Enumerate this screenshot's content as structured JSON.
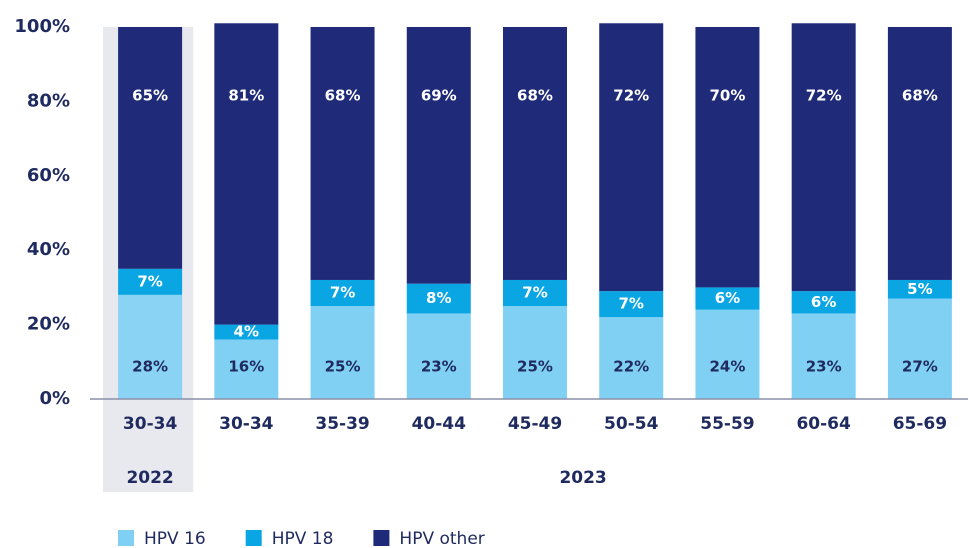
{
  "chart_data": {
    "type": "stacked_bar",
    "groups": [
      {
        "label": "2022",
        "categories": [
          "30-34"
        ]
      },
      {
        "label": "2023",
        "categories": [
          "30-34",
          "35-39",
          "40-44",
          "45-49",
          "50-54",
          "55-59",
          "60-64",
          "65-69"
        ]
      }
    ],
    "series": [
      {
        "name": "HPV 16",
        "color": "#80d0f4",
        "values": [
          28,
          16,
          25,
          23,
          25,
          22,
          24,
          23,
          27
        ],
        "value_labels": [
          "28%",
          "16%",
          "25%",
          "23%",
          "25%",
          "22%",
          "24%",
          "23%",
          "27%"
        ]
      },
      {
        "name": "HPV 18",
        "color": "#0aa6e4",
        "values": [
          7,
          4,
          7,
          8,
          7,
          7,
          6,
          6,
          5
        ],
        "value_labels": [
          "7%",
          "4%",
          "7%",
          "8%",
          "7%",
          "7%",
          "6%",
          "6%",
          "5%"
        ]
      },
      {
        "name": "HPV other",
        "color": "#1f2a78",
        "values": [
          65,
          81,
          68,
          69,
          68,
          72,
          70,
          72,
          68
        ],
        "value_labels": [
          "65%",
          "81%",
          "68%",
          "69%",
          "68%",
          "72%",
          "70%",
          "72%",
          "68%"
        ]
      }
    ],
    "ylim": [
      0,
      100
    ],
    "yticks": [
      {
        "value": 0,
        "label": "0%"
      },
      {
        "value": 20,
        "label": "20%"
      },
      {
        "value": 40,
        "label": "40%"
      },
      {
        "value": 60,
        "label": "60%"
      },
      {
        "value": 80,
        "label": "80%"
      },
      {
        "value": 100,
        "label": "100%"
      }
    ],
    "legend": "bottom-left"
  }
}
